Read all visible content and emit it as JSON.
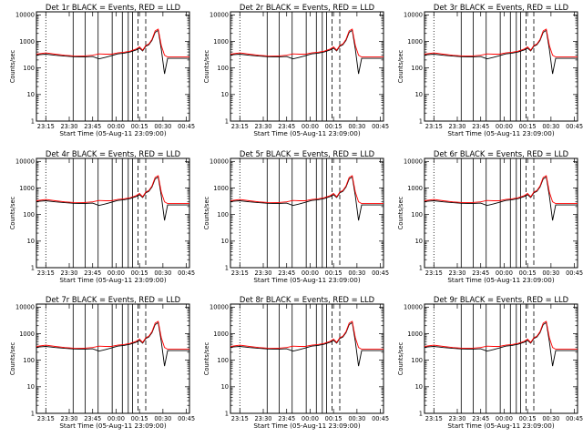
{
  "chart_data": [
    {
      "type": "line",
      "title": "Det 1r BLACK = Events, RED = LLD"
    },
    {
      "type": "line",
      "title": "Det 2r BLACK = Events, RED = LLD"
    },
    {
      "type": "line",
      "title": "Det 3r BLACK = Events, RED = LLD"
    },
    {
      "type": "line",
      "title": "Det 4r BLACK = Events, RED = LLD"
    },
    {
      "type": "line",
      "title": "Det 5r BLACK = Events, RED = LLD"
    },
    {
      "type": "line",
      "title": "Det 6r BLACK = Events, RED = LLD"
    },
    {
      "type": "line",
      "title": "Det 7r BLACK = Events, RED = LLD"
    },
    {
      "type": "line",
      "title": "Det 8r BLACK = Events, RED = LLD"
    },
    {
      "type": "line",
      "title": "Det 9r BLACK = Events, RED = LLD"
    }
  ],
  "common": {
    "ylabel": "Counts/sec",
    "xlabel": "Start Time (05-Aug-11 23:09:00)",
    "xticks": [
      "23:15",
      "23:30",
      "23:45",
      "00:00",
      "00:15",
      "00:30",
      "00:45"
    ],
    "yticks": [
      "1",
      "10",
      "100",
      "1000",
      "10000"
    ],
    "yscale": "log",
    "ylim": [
      1,
      13000
    ],
    "xlim_minutes": [
      0,
      98
    ],
    "series_colors": {
      "events": "#000000",
      "lld": "#ff0000"
    },
    "time_points": [
      0,
      6,
      12,
      18,
      24,
      30,
      36,
      40,
      44,
      48,
      52,
      56,
      60,
      64,
      66,
      68,
      70,
      72,
      74,
      76,
      78,
      80,
      82,
      84,
      86,
      88,
      90,
      92,
      94,
      96,
      98
    ],
    "lld_counts": [
      330,
      370,
      330,
      300,
      285,
      280,
      300,
      340,
      330,
      330,
      370,
      390,
      430,
      520,
      620,
      470,
      700,
      800,
      1200,
      2500,
      2900,
      700,
      300,
      260,
      260,
      260,
      260,
      260,
      260,
      260,
      260
    ],
    "events_counts": [
      310,
      330,
      300,
      280,
      265,
      260,
      270,
      220,
      250,
      290,
      340,
      360,
      400,
      480,
      560,
      440,
      650,
      750,
      1100,
      2200,
      2600,
      500,
      60,
      230,
      230,
      230,
      230,
      230,
      230,
      230,
      230
    ],
    "solid_markers_min": [
      23.5,
      31.2,
      39.5,
      48.5,
      55.0,
      58.8,
      61.5
    ],
    "dashed_markers_min": [
      65.0,
      70.0
    ],
    "dotted_markers_min": [
      6.0
    ]
  }
}
